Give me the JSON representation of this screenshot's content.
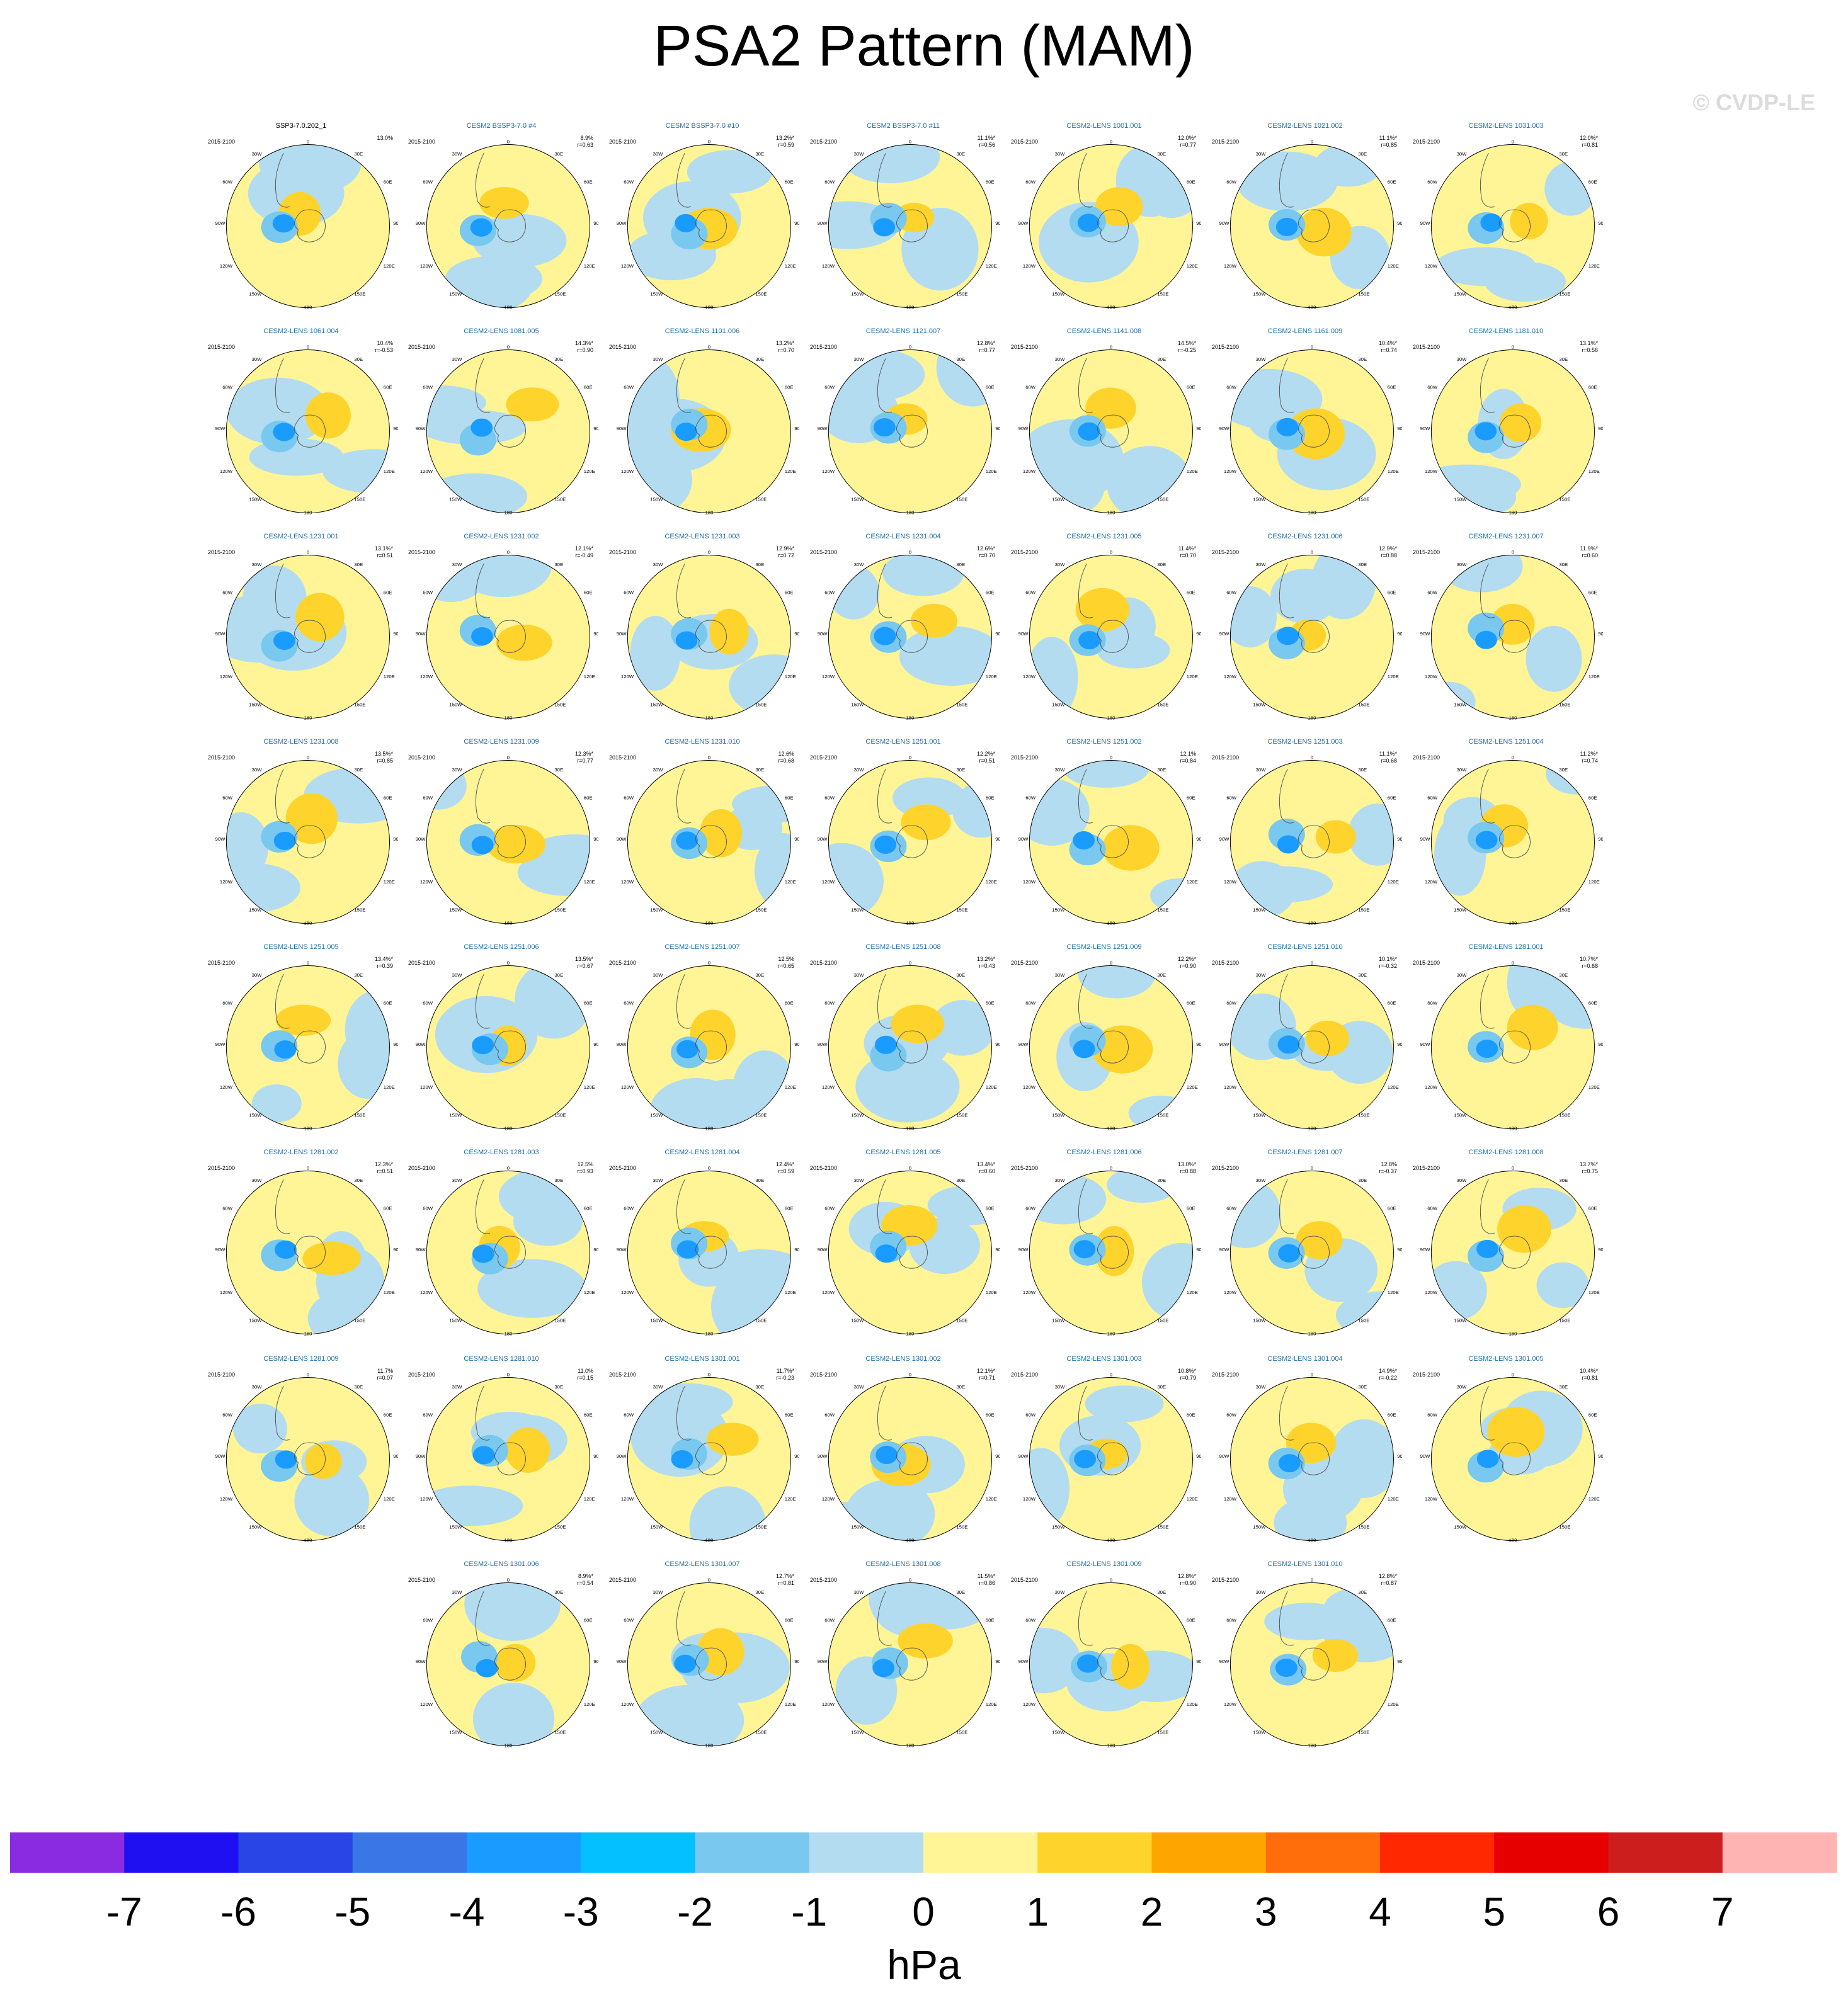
{
  "title": "PSA2 Pattern (MAM)",
  "watermark": "© CVDP-LE",
  "units": "hPa",
  "colorbar": {
    "ticks": [
      "-7",
      "-6",
      "-5",
      "-4",
      "-3",
      "-2",
      "-1",
      "0",
      "1",
      "2",
      "3",
      "4",
      "5",
      "6",
      "7"
    ],
    "colors": [
      "#8a2be2",
      "#1e10f0",
      "#2a45e6",
      "#3a76e6",
      "#1a9bff",
      "#05c0ff",
      "#78c8f0",
      "#b4dcf0",
      "#fff596",
      "#fed42c",
      "#ffa500",
      "#ff6e0a",
      "#ff2800",
      "#e60000",
      "#cd1e1e",
      "#ffb4b4"
    ]
  },
  "map_labels": {
    "top": "0",
    "right_upper": "30E",
    "right_mid1": "60E",
    "right_mid2": "90E",
    "right_low": "120E",
    "right_bottom": "150E",
    "bottom": "180",
    "left_bottom": "150W",
    "left_low": "120W",
    "left_mid2": "90W",
    "left_mid1": "60W",
    "left_upper": "30W"
  },
  "panels": [
    {
      "name": "SSP3-7.0.202_1",
      "period": "2015-2100",
      "pct": "13.0%",
      "r": ""
    },
    {
      "name": "CESM2 BSSP3-7.0 #4",
      "period": "2015-2100",
      "pct": "8.9%",
      "r": "r=0.63"
    },
    {
      "name": "CESM2 BSSP3-7.0 #10",
      "period": "2015-2100",
      "pct": "13.2%*",
      "r": "r=0.59"
    },
    {
      "name": "CESM2 BSSP3-7.0 #11",
      "period": "2015-2100",
      "pct": "11.1%*",
      "r": "r=0.56"
    },
    {
      "name": "CESM2-LENS 1001.001",
      "period": "2015-2100",
      "pct": "12.0%*",
      "r": "r=0.77"
    },
    {
      "name": "CESM2-LENS 1021.002",
      "period": "2015-2100",
      "pct": "11.1%*",
      "r": "r=0.85"
    },
    {
      "name": "CESM2-LENS 1031.003",
      "period": "2015-2100",
      "pct": "12.0%*",
      "r": "r=0.81"
    },
    {
      "name": "CESM2-LENS 1061.004",
      "period": "2015-2100",
      "pct": "10.4%",
      "r": "r=-0.53"
    },
    {
      "name": "CESM2-LENS 1081.005",
      "period": "2015-2100",
      "pct": "14.3%*",
      "r": "r=0.90"
    },
    {
      "name": "CESM2-LENS 1101.006",
      "period": "2015-2100",
      "pct": "13.2%*",
      "r": "r=0.70"
    },
    {
      "name": "CESM2-LENS 1121.007",
      "period": "2015-2100",
      "pct": "12.8%*",
      "r": "r=0.77"
    },
    {
      "name": "CESM2-LENS 1141.008",
      "period": "2015-2100",
      "pct": "14.5%*",
      "r": "r=-0.25"
    },
    {
      "name": "CESM2-LENS 1161.009",
      "period": "2015-2100",
      "pct": "10.4%*",
      "r": "r=0.74"
    },
    {
      "name": "CESM2-LENS 1181.010",
      "period": "2015-2100",
      "pct": "13.1%*",
      "r": "r=0.56"
    },
    {
      "name": "CESM2-LENS 1231.001",
      "period": "2015-2100",
      "pct": "13.1%*",
      "r": "r=0.51"
    },
    {
      "name": "CESM2-LENS 1231.002",
      "period": "2015-2100",
      "pct": "12.1%*",
      "r": "r=-0.49"
    },
    {
      "name": "CESM2-LENS 1231.003",
      "period": "2015-2100",
      "pct": "12.9%*",
      "r": "r=0.72"
    },
    {
      "name": "CESM2-LENS 1231.004",
      "period": "2015-2100",
      "pct": "12.6%*",
      "r": "r=0.70"
    },
    {
      "name": "CESM2-LENS 1231.005",
      "period": "2015-2100",
      "pct": "11.4%*",
      "r": "r=0.70"
    },
    {
      "name": "CESM2-LENS 1231.006",
      "period": "2015-2100",
      "pct": "12.9%*",
      "r": "r=0.88"
    },
    {
      "name": "CESM2-LENS 1231.007",
      "period": "2015-2100",
      "pct": "11.9%*",
      "r": "r=0.60"
    },
    {
      "name": "CESM2-LENS 1231.008",
      "period": "2015-2100",
      "pct": "13.5%*",
      "r": "r=0.85"
    },
    {
      "name": "CESM2-LENS 1231.009",
      "period": "2015-2100",
      "pct": "12.3%*",
      "r": "r=0.77"
    },
    {
      "name": "CESM2-LENS 1231.010",
      "period": "2015-2100",
      "pct": "12.6%",
      "r": "r=0.68"
    },
    {
      "name": "CESM2-LENS 1251.001",
      "period": "2015-2100",
      "pct": "12.2%*",
      "r": "r=0.51"
    },
    {
      "name": "CESM2-LENS 1251.002",
      "period": "2015-2100",
      "pct": "12.1%",
      "r": "r=0.84"
    },
    {
      "name": "CESM2-LENS 1251.003",
      "period": "2015-2100",
      "pct": "11.1%*",
      "r": "r=0.68"
    },
    {
      "name": "CESM2-LENS 1251.004",
      "period": "2015-2100",
      "pct": "11.2%*",
      "r": "r=0.74"
    },
    {
      "name": "CESM2-LENS 1251.005",
      "period": "2015-2100",
      "pct": "13.4%*",
      "r": "r=0.39"
    },
    {
      "name": "CESM2-LENS 1251.006",
      "period": "2015-2100",
      "pct": "13.5%*",
      "r": "r=0.67"
    },
    {
      "name": "CESM2-LENS 1251.007",
      "period": "2015-2100",
      "pct": "12.5%",
      "r": "r=0.65"
    },
    {
      "name": "CESM2-LENS 1251.008",
      "period": "2015-2100",
      "pct": "13.2%*",
      "r": "r=0.43"
    },
    {
      "name": "CESM2-LENS 1251.009",
      "period": "2015-2100",
      "pct": "12.2%*",
      "r": "r=0.90"
    },
    {
      "name": "CESM2-LENS 1251.010",
      "period": "2015-2100",
      "pct": "10.1%*",
      "r": "r=-0.32"
    },
    {
      "name": "CESM2-LENS 1281.001",
      "period": "2015-2100",
      "pct": "10.7%*",
      "r": "r=0.68"
    },
    {
      "name": "CESM2-LENS 1281.002",
      "period": "2015-2100",
      "pct": "12.3%*",
      "r": "r=0.51"
    },
    {
      "name": "CESM2-LENS 1281.003",
      "period": "2015-2100",
      "pct": "12.5%",
      "r": "r=0.93"
    },
    {
      "name": "CESM2-LENS 1281.004",
      "period": "2015-2100",
      "pct": "12.4%*",
      "r": "r=0.59"
    },
    {
      "name": "CESM2-LENS 1281.005",
      "period": "2015-2100",
      "pct": "13.4%*",
      "r": "r=0.60"
    },
    {
      "name": "CESM2-LENS 1281.006",
      "period": "2015-2100",
      "pct": "13.0%*",
      "r": "r=0.88"
    },
    {
      "name": "CESM2-LENS 1281.007",
      "period": "2015-2100",
      "pct": "12.8%",
      "r": "r=-0.37"
    },
    {
      "name": "CESM2-LENS 1281.008",
      "period": "2015-2100",
      "pct": "13.7%*",
      "r": "r=0.75"
    },
    {
      "name": "CESM2-LENS 1281.009",
      "period": "2015-2100",
      "pct": "11.7%",
      "r": "r=0.07"
    },
    {
      "name": "CESM2-LENS 1281.010",
      "period": "2015-2100",
      "pct": "11.0%",
      "r": "r=0.15"
    },
    {
      "name": "CESM2-LENS 1301.001",
      "period": "2015-2100",
      "pct": "11.7%*",
      "r": "r=-0.23"
    },
    {
      "name": "CESM2-LENS 1301.002",
      "period": "2015-2100",
      "pct": "12.1%*",
      "r": "r=0.71"
    },
    {
      "name": "CESM2-LENS 1301.003",
      "period": "2015-2100",
      "pct": "10.8%*",
      "r": "r=0.79"
    },
    {
      "name": "CESM2-LENS 1301.004",
      "period": "2015-2100",
      "pct": "14.9%*",
      "r": "r=-0.22"
    },
    {
      "name": "CESM2-LENS 1301.005",
      "period": "2015-2100",
      "pct": "10.4%*",
      "r": "r=0.81"
    },
    {
      "name": "CESM2-LENS 1301.006",
      "period": "2015-2100",
      "pct": "8.9%*",
      "r": "r=0.54"
    },
    {
      "name": "CESM2-LENS 1301.007",
      "period": "2015-2100",
      "pct": "12.7%*",
      "r": "r=0.81"
    },
    {
      "name": "CESM2-LENS 1301.008",
      "period": "2015-2100",
      "pct": "11.5%*",
      "r": "r=0.86"
    },
    {
      "name": "CESM2-LENS 1301.009",
      "period": "2015-2100",
      "pct": "12.8%*",
      "r": "r=0.90"
    },
    {
      "name": "CESM2-LENS 1301.010",
      "period": "2015-2100",
      "pct": "12.8%*",
      "r": "r=0.87"
    }
  ]
}
